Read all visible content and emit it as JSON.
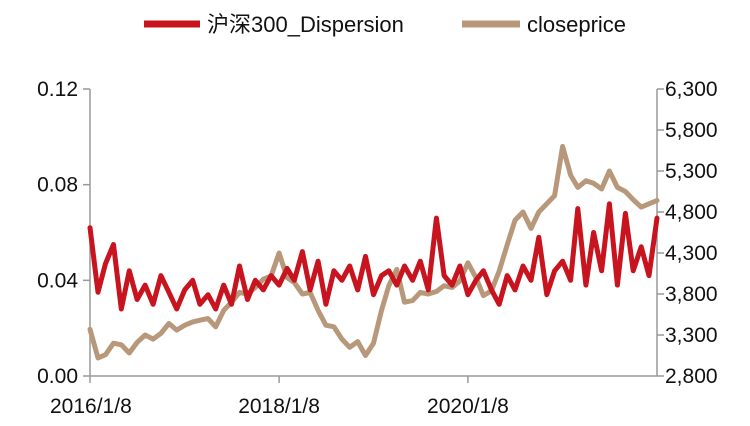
{
  "chart_data": {
    "type": "line",
    "title": "",
    "xlabel": "",
    "ylabel": "",
    "y2label": "",
    "legend": {
      "position": "top-center"
    },
    "grid": false,
    "x_range": [
      "2016/1/8",
      "2022/1/8"
    ],
    "x_ticks": [
      "2016/1/8",
      "2018/1/8",
      "2020/1/8"
    ],
    "y_left": {
      "range": [
        0,
        0.12
      ],
      "ticks": [
        "0.00",
        "0.04",
        "0.08",
        "0.12"
      ]
    },
    "y_right": {
      "range": [
        2800,
        6300
      ],
      "ticks": [
        "2,800",
        "3,300",
        "3,800",
        "4,300",
        "4,800",
        "5,300",
        "5,800",
        "6,300"
      ]
    },
    "series": [
      {
        "name": "沪深300_Dispersion",
        "axis": "left",
        "color": "#C8141E",
        "x": [
          "2016/1/8",
          "2016/2/8",
          "2016/3/8",
          "2016/4/8",
          "2016/5/8",
          "2016/6/8",
          "2016/7/8",
          "2016/8/8",
          "2016/9/8",
          "2016/10/8",
          "2016/11/8",
          "2016/12/8",
          "2017/1/8",
          "2017/2/8",
          "2017/3/8",
          "2017/4/8",
          "2017/5/8",
          "2017/6/8",
          "2017/7/8",
          "2017/8/8",
          "2017/9/8",
          "2017/10/8",
          "2017/11/8",
          "2017/12/8",
          "2018/1/8",
          "2018/2/8",
          "2018/3/8",
          "2018/4/8",
          "2018/5/8",
          "2018/6/8",
          "2018/7/8",
          "2018/8/8",
          "2018/9/8",
          "2018/10/8",
          "2018/11/8",
          "2018/12/8",
          "2019/1/8",
          "2019/2/8",
          "2019/3/8",
          "2019/4/8",
          "2019/5/8",
          "2019/6/8",
          "2019/7/8",
          "2019/8/8",
          "2019/9/8",
          "2019/10/8",
          "2019/11/8",
          "2019/12/8",
          "2020/1/8",
          "2020/2/8",
          "2020/3/8",
          "2020/4/8",
          "2020/5/8",
          "2020/6/8",
          "2020/7/8",
          "2020/8/8",
          "2020/9/8",
          "2020/10/8",
          "2020/11/8",
          "2020/12/8",
          "2021/1/8",
          "2021/2/8",
          "2021/3/8",
          "2021/4/8",
          "2021/5/8",
          "2021/6/8",
          "2021/7/8",
          "2021/8/8",
          "2021/9/8",
          "2021/10/8",
          "2021/11/8",
          "2021/12/8",
          "2022/1/8"
        ],
        "values": [
          0.062,
          0.035,
          0.047,
          0.055,
          0.028,
          0.044,
          0.032,
          0.038,
          0.03,
          0.042,
          0.035,
          0.028,
          0.036,
          0.04,
          0.03,
          0.034,
          0.028,
          0.038,
          0.03,
          0.046,
          0.032,
          0.04,
          0.036,
          0.042,
          0.038,
          0.045,
          0.04,
          0.052,
          0.036,
          0.048,
          0.03,
          0.044,
          0.04,
          0.046,
          0.036,
          0.05,
          0.034,
          0.042,
          0.044,
          0.038,
          0.046,
          0.04,
          0.048,
          0.036,
          0.066,
          0.042,
          0.038,
          0.046,
          0.034,
          0.04,
          0.044,
          0.036,
          0.03,
          0.042,
          0.036,
          0.046,
          0.04,
          0.058,
          0.034,
          0.044,
          0.048,
          0.04,
          0.07,
          0.038,
          0.06,
          0.044,
          0.072,
          0.038,
          0.068,
          0.044,
          0.054,
          0.042,
          0.066
        ]
      },
      {
        "name": "closeprice",
        "axis": "right",
        "color": "#B8987A",
        "x": [
          "2016/1/8",
          "2016/2/8",
          "2016/3/8",
          "2016/4/8",
          "2016/5/8",
          "2016/6/8",
          "2016/7/8",
          "2016/8/8",
          "2016/9/8",
          "2016/10/8",
          "2016/11/8",
          "2016/12/8",
          "2017/1/8",
          "2017/2/8",
          "2017/3/8",
          "2017/4/8",
          "2017/5/8",
          "2017/6/8",
          "2017/7/8",
          "2017/8/8",
          "2017/9/8",
          "2017/10/8",
          "2017/11/8",
          "2017/12/8",
          "2018/1/8",
          "2018/2/8",
          "2018/3/8",
          "2018/4/8",
          "2018/5/8",
          "2018/6/8",
          "2018/7/8",
          "2018/8/8",
          "2018/9/8",
          "2018/10/8",
          "2018/11/8",
          "2018/12/8",
          "2019/1/8",
          "2019/2/8",
          "2019/3/8",
          "2019/4/8",
          "2019/5/8",
          "2019/6/8",
          "2019/7/8",
          "2019/8/8",
          "2019/9/8",
          "2019/10/8",
          "2019/11/8",
          "2019/12/8",
          "2020/1/8",
          "2020/2/8",
          "2020/3/8",
          "2020/4/8",
          "2020/5/8",
          "2020/6/8",
          "2020/7/8",
          "2020/8/8",
          "2020/9/8",
          "2020/10/8",
          "2020/11/8",
          "2020/12/8",
          "2021/1/8",
          "2021/2/8",
          "2021/3/8",
          "2021/4/8",
          "2021/5/8",
          "2021/6/8",
          "2021/7/8",
          "2021/8/8",
          "2021/9/8",
          "2021/10/8",
          "2021/11/8",
          "2021/12/8",
          "2022/1/8"
        ],
        "values": [
          3370,
          3020,
          3060,
          3200,
          3180,
          3080,
          3210,
          3300,
          3250,
          3320,
          3440,
          3360,
          3420,
          3460,
          3480,
          3500,
          3400,
          3600,
          3700,
          3820,
          3800,
          3880,
          3980,
          4020,
          4300,
          4000,
          3940,
          3800,
          3820,
          3600,
          3420,
          3400,
          3250,
          3150,
          3220,
          3050,
          3200,
          3600,
          3900,
          4100,
          3700,
          3720,
          3820,
          3800,
          3830,
          3900,
          3880,
          3960,
          4180,
          4000,
          3780,
          3840,
          4080,
          4400,
          4700,
          4800,
          4600,
          4800,
          4900,
          5000,
          5600,
          5250,
          5100,
          5180,
          5150,
          5080,
          5300,
          5100,
          5050,
          4950,
          4860,
          4900,
          4940
        ]
      }
    ]
  }
}
